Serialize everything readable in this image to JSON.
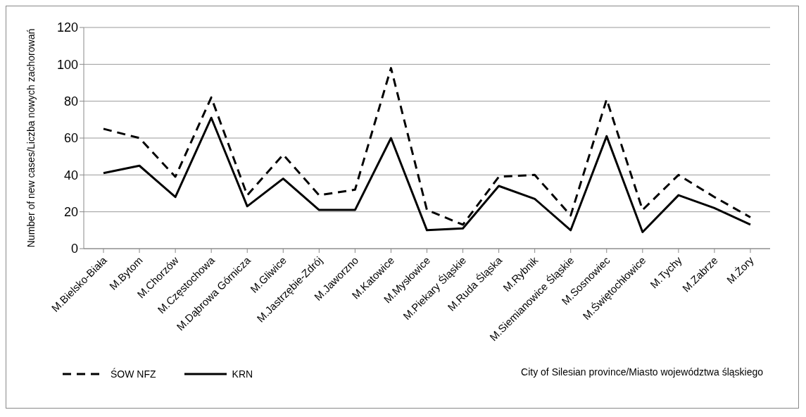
{
  "chart_data": {
    "type": "line",
    "xlabel": "City of Silesian province/Miasto województwa śląskiego",
    "ylabel": "Number of new cases/Liczba nowych zachorowań",
    "categories": [
      "M.Bielsko-Biała",
      "M.Bytom",
      "M.Chorzów",
      "M.Częstochowa",
      "M.Dąbrowa Górnicza",
      "M.Gliwice",
      "M.Jastrzębie-Zdrój",
      "M.Jaworzno",
      "M.Katowice",
      "M.Mysłowice",
      "M.Piekary Śląskie",
      "M.Ruda Śląska",
      "M.Rybnik",
      "M.Siemianowice Śląskie",
      "M.Sosnowiec",
      "M.Świętochłowice",
      "M.Tychy",
      "M.Zabrze",
      "M.Żory"
    ],
    "series": [
      {
        "name": "ŚOW NFZ",
        "color": "#000000",
        "line_style": "dashed",
        "values": [
          65,
          60,
          39,
          82,
          29,
          51,
          29,
          32,
          98,
          21,
          13,
          39,
          40,
          18,
          81,
          21,
          40,
          28,
          17
        ]
      },
      {
        "name": "KRN",
        "color": "#000000",
        "line_style": "solid",
        "values": [
          41,
          45,
          28,
          71,
          23,
          38,
          21,
          21,
          60,
          10,
          11,
          34,
          27,
          10,
          61,
          9,
          29,
          22,
          13
        ]
      }
    ],
    "ylim": [
      0,
      120
    ],
    "yticks": [
      0,
      20,
      40,
      60,
      80,
      100,
      120
    ],
    "grid": "y",
    "legend": "bottom left",
    "marker": "none"
  }
}
